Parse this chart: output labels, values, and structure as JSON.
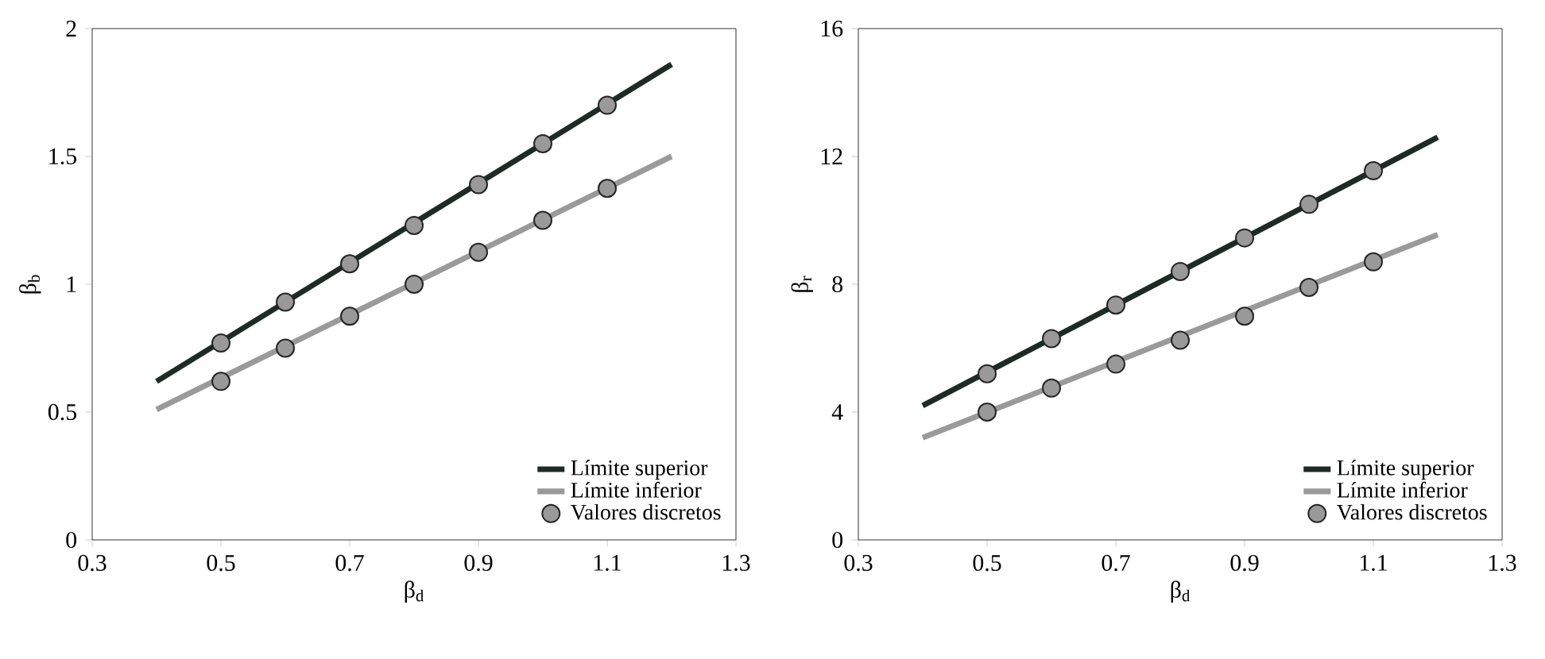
{
  "chart_data": [
    {
      "type": "line",
      "xlabel": "β$_{d}$",
      "ylabel": "β$_{b}$",
      "xlim": [
        0.3,
        1.3
      ],
      "xticks": [
        0.3,
        0.5,
        0.7,
        0.9,
        1.1,
        1.3
      ],
      "ylim": [
        0,
        2
      ],
      "yticks": [
        0,
        0.5,
        1,
        1.5,
        2
      ],
      "legend": "bottom right",
      "grid": false,
      "series": [
        {
          "name": "Límite superior",
          "color": "#1e2b25",
          "x": [
            0.4,
            1.2
          ],
          "values": [
            0.62,
            1.86
          ]
        },
        {
          "name": "Límite inferior",
          "color": "#9a9a9a",
          "x": [
            0.4,
            1.2
          ],
          "values": [
            0.51,
            1.5
          ]
        },
        {
          "name": "Valores discretos",
          "type": "scatter",
          "color": "#999999",
          "x": [
            0.5,
            0.6,
            0.7,
            0.8,
            0.9,
            1.0,
            1.1,
            0.5,
            0.6,
            0.7,
            0.8,
            0.9,
            1.0,
            1.1
          ],
          "values": [
            0.77,
            0.93,
            1.08,
            1.23,
            1.39,
            1.55,
            1.7,
            0.62,
            0.75,
            0.875,
            1.0,
            1.125,
            1.25,
            1.375
          ]
        }
      ]
    },
    {
      "type": "line",
      "xlabel": "β$_{d}$",
      "ylabel": "β$_{r}$",
      "xlim": [
        0.3,
        1.3
      ],
      "xticks": [
        0.3,
        0.5,
        0.7,
        0.9,
        1.1,
        1.3
      ],
      "ylim": [
        0,
        16
      ],
      "yticks": [
        0,
        4,
        8,
        12,
        16
      ],
      "legend": "bottom right",
      "grid": false,
      "series": [
        {
          "name": "Límite superior",
          "color": "#1e2b25",
          "x": [
            0.4,
            1.2
          ],
          "values": [
            4.2,
            12.6
          ]
        },
        {
          "name": "Límite inferior",
          "color": "#9a9a9a",
          "x": [
            0.4,
            1.2
          ],
          "values": [
            3.2,
            9.55
          ]
        },
        {
          "name": "Valores discretos",
          "type": "scatter",
          "color": "#999999",
          "x": [
            0.5,
            0.6,
            0.7,
            0.8,
            0.9,
            1.0,
            1.1,
            0.5,
            0.6,
            0.7,
            0.8,
            0.9,
            1.0,
            1.1
          ],
          "values": [
            5.2,
            6.3,
            7.35,
            8.4,
            9.45,
            10.5,
            11.55,
            4.0,
            4.75,
            5.5,
            6.25,
            7.0,
            7.9,
            8.7
          ]
        }
      ]
    }
  ]
}
